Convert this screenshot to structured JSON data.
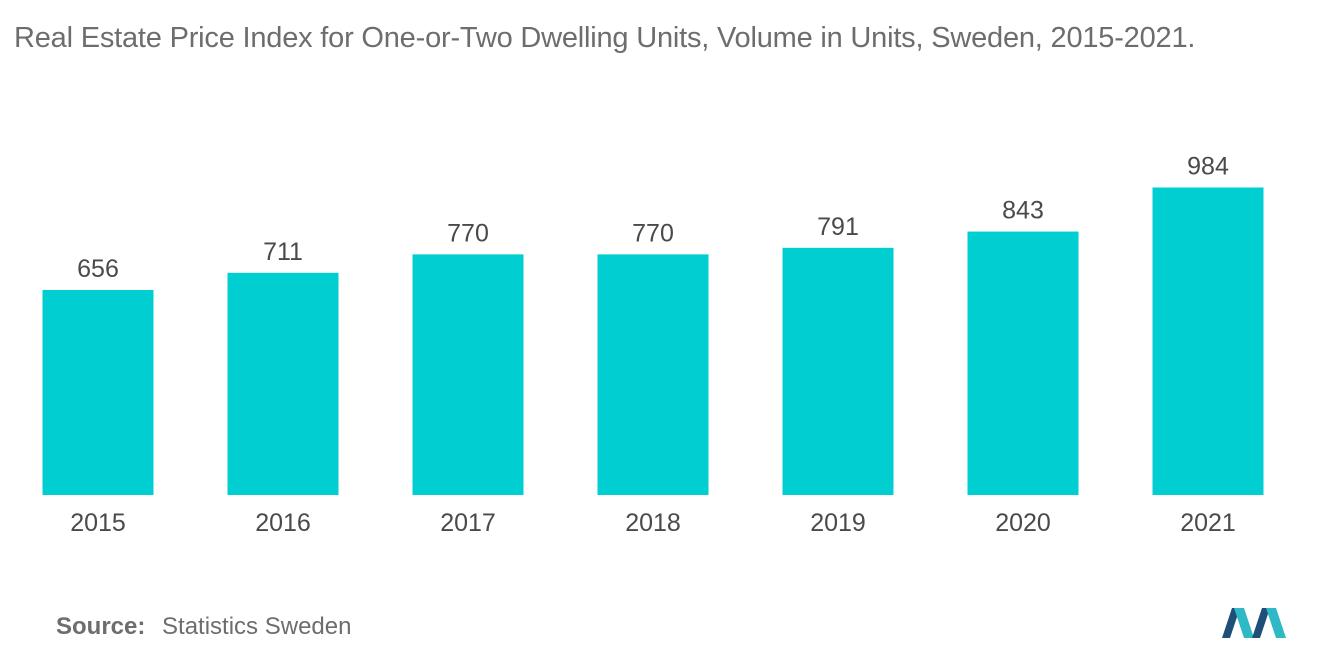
{
  "chart_data": {
    "type": "bar",
    "title": "Real Estate Price Index for One-or-Two Dwelling Units, Volume in Units, Sweden, 2015-2021.",
    "categories": [
      "2015",
      "2016",
      "2017",
      "2018",
      "2019",
      "2020",
      "2021"
    ],
    "values": [
      656,
      711,
      770,
      770,
      791,
      843,
      984
    ],
    "xlabel": "",
    "ylabel": "",
    "ylim": [
      0,
      1000
    ],
    "grid": false,
    "legend": "none"
  },
  "colors": {
    "bar": "#00ced1",
    "text": "#4a4a4a",
    "title": "#6d6d6d",
    "logo_dark": "#1f4e79",
    "logo_light": "#2fb9c6"
  },
  "source": {
    "label": "Source:",
    "text": "Statistics Sweden"
  },
  "logo": {
    "icon": "mordor-intelligence-logo-icon"
  }
}
